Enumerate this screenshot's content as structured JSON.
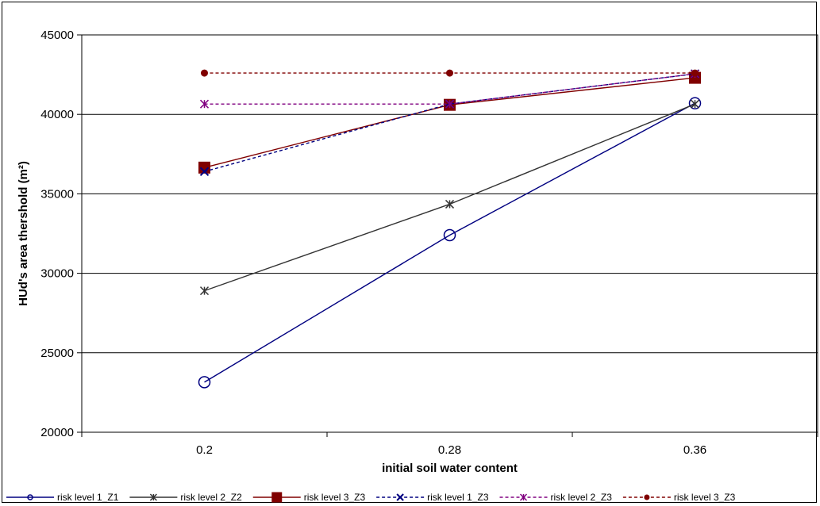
{
  "chart_data": {
    "type": "line",
    "title": "",
    "xlabel": "initial soil water content",
    "ylabel": "HUd's area thershold (m²)",
    "categories": [
      "0.2",
      "0.28",
      "0.36"
    ],
    "ylim": [
      20000,
      45000
    ],
    "yticks": [
      "20000",
      "25000",
      "30000",
      "35000",
      "40000",
      "45000"
    ],
    "grid": "horizontal",
    "legend_position": "bottom",
    "series": [
      {
        "name": "risk level 1_Z1",
        "values": [
          23150,
          32400,
          40700
        ],
        "color": "#000080",
        "dash": "solid",
        "marker": "circle-open"
      },
      {
        "name": "risk level 2_Z2",
        "values": [
          28900,
          34350,
          40650
        ],
        "color": "#333333",
        "dash": "solid",
        "marker": "star"
      },
      {
        "name": "risk level 3_Z3",
        "values": [
          36650,
          40600,
          42300
        ],
        "color": "#800000",
        "dash": "solid",
        "marker": "square"
      },
      {
        "name": "risk level 1_Z3",
        "values": [
          36400,
          40650,
          42550
        ],
        "color": "#000080",
        "dash": "dashed",
        "marker": "x"
      },
      {
        "name": "risk level 2_Z3",
        "values": [
          40650,
          40650,
          42550
        ],
        "color": "#800080",
        "dash": "dashed",
        "marker": "star"
      },
      {
        "name": "risk level 3_Z3",
        "values": [
          42600,
          42600,
          42600
        ],
        "color": "#800000",
        "dash": "dashed",
        "marker": "dot"
      }
    ]
  }
}
